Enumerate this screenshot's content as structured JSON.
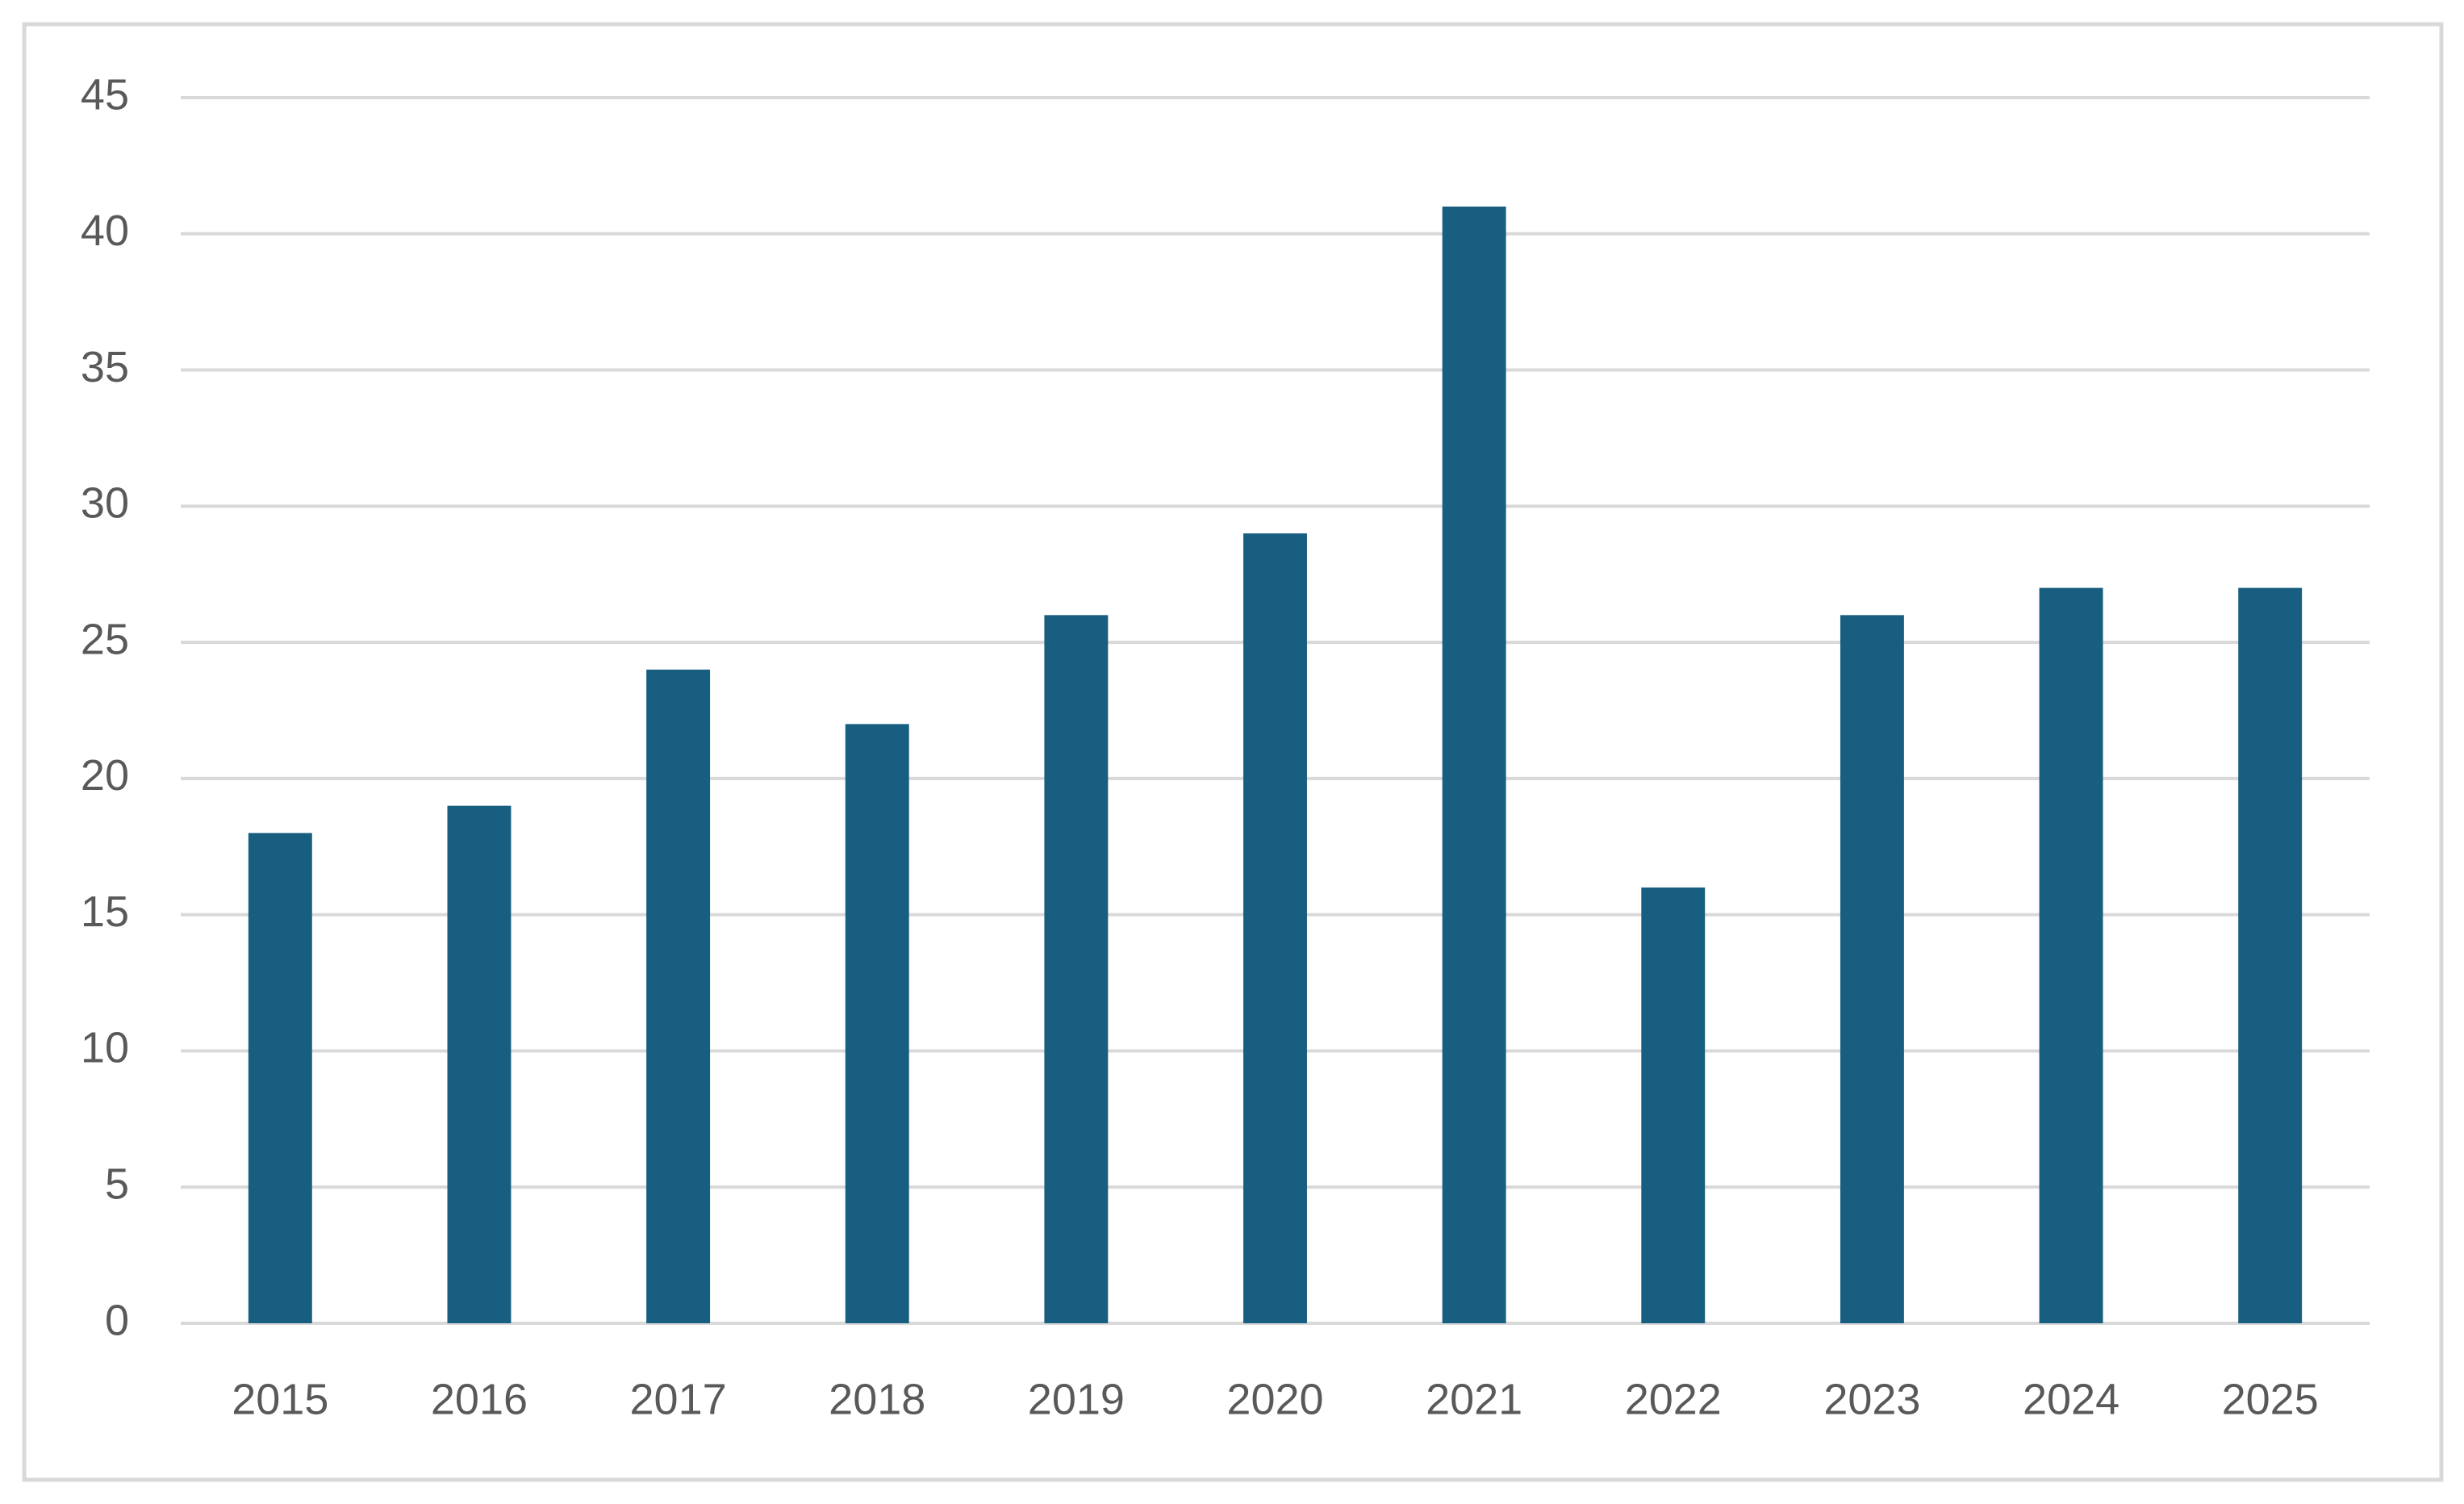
{
  "chart_data": {
    "type": "bar",
    "categories": [
      "2015",
      "2016",
      "2017",
      "2018",
      "2019",
      "2020",
      "2021",
      "2022",
      "2023",
      "2024",
      "2025"
    ],
    "values": [
      18,
      19,
      24,
      22,
      26,
      29,
      41,
      16,
      26,
      27,
      27
    ],
    "color": "#175e80",
    "ylim": [
      0,
      45
    ],
    "yticks": [
      0,
      5,
      10,
      15,
      20,
      25,
      30,
      35,
      40,
      45
    ],
    "grid": true
  }
}
